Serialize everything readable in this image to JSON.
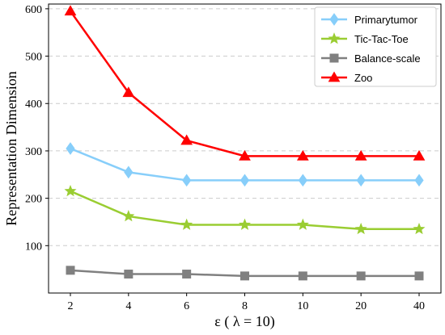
{
  "chart_data": {
    "type": "line",
    "xlabel": "ε ( λ = 10)",
    "ylabel": "Representation Dimension",
    "categories": [
      "2",
      "4",
      "6",
      "8",
      "10",
      "20",
      "40"
    ],
    "ylim": [
      0,
      610
    ],
    "yticks": [
      100,
      200,
      300,
      400,
      500,
      600
    ],
    "grid": "horizontal dashed",
    "legend_position": "top-right",
    "series": [
      {
        "name": "Primarytumor",
        "color": "#87cefa",
        "marker": "diamond",
        "values": [
          305,
          255,
          238,
          238,
          238,
          238,
          238
        ]
      },
      {
        "name": "Tic-Tac-Toe",
        "color": "#9acd32",
        "marker": "star",
        "values": [
          215,
          162,
          144,
          144,
          144,
          135,
          135
        ]
      },
      {
        "name": "Balance-scale",
        "color": "#808080",
        "marker": "square",
        "values": [
          48,
          40,
          40,
          36,
          36,
          36,
          36
        ]
      },
      {
        "name": "Zoo",
        "color": "#ff0000",
        "marker": "triangle",
        "values": [
          595,
          423,
          322,
          289,
          289,
          289,
          289
        ]
      }
    ]
  }
}
